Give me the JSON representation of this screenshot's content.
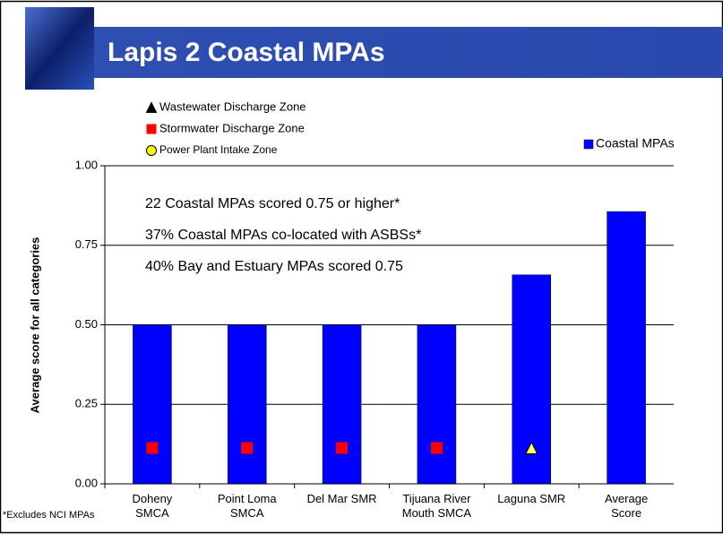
{
  "chart_data": {
    "type": "bar",
    "title": "Lapis 2 Coastal MPAs",
    "y_label": "Average score for all categories",
    "categories": [
      "Doheny\nSMCA",
      "Point Loma\nSMCA",
      "Del Mar SMR",
      "Tijuana River\nMouth SMCA",
      "Laguna SMR",
      "Average\nScore"
    ],
    "series": [
      {
        "name": "Coastal MPAs",
        "color": "#0000ff",
        "values": [
          0.5,
          0.5,
          0.5,
          0.5,
          0.657,
          0.856
        ]
      }
    ],
    "ylim": [
      0,
      1
    ],
    "yticks": [
      {
        "value": 0,
        "label": "0.00"
      },
      {
        "value": 0.25,
        "label": "0.25"
      },
      {
        "value": 0.5,
        "label": "0.50"
      },
      {
        "value": 0.75,
        "label": "0.75"
      },
      {
        "value": 1,
        "label": "1.00"
      }
    ],
    "grid": true,
    "legend": "top-right",
    "zones": [
      {
        "name": "Wastewater Discharge Zone",
        "shape": "triangle",
        "color": "#000000"
      },
      {
        "name": "Stormwater Discharge Zone",
        "shape": "square",
        "color": "#ff0000"
      },
      {
        "name": "Power Plant Intake Zone",
        "shape": "circle",
        "color": "#ffff00"
      }
    ],
    "category_zones": [
      1,
      1,
      1,
      1,
      0,
      null
    ],
    "annotations": [
      "22 Coastal MPAs scored 0.75 or higher*",
      "37% Coastal MPAs co-located with ASBSs*",
      "40% Bay and Estuary MPAs scored 0.75"
    ],
    "footnote": "*Excludes NCI MPAs"
  }
}
